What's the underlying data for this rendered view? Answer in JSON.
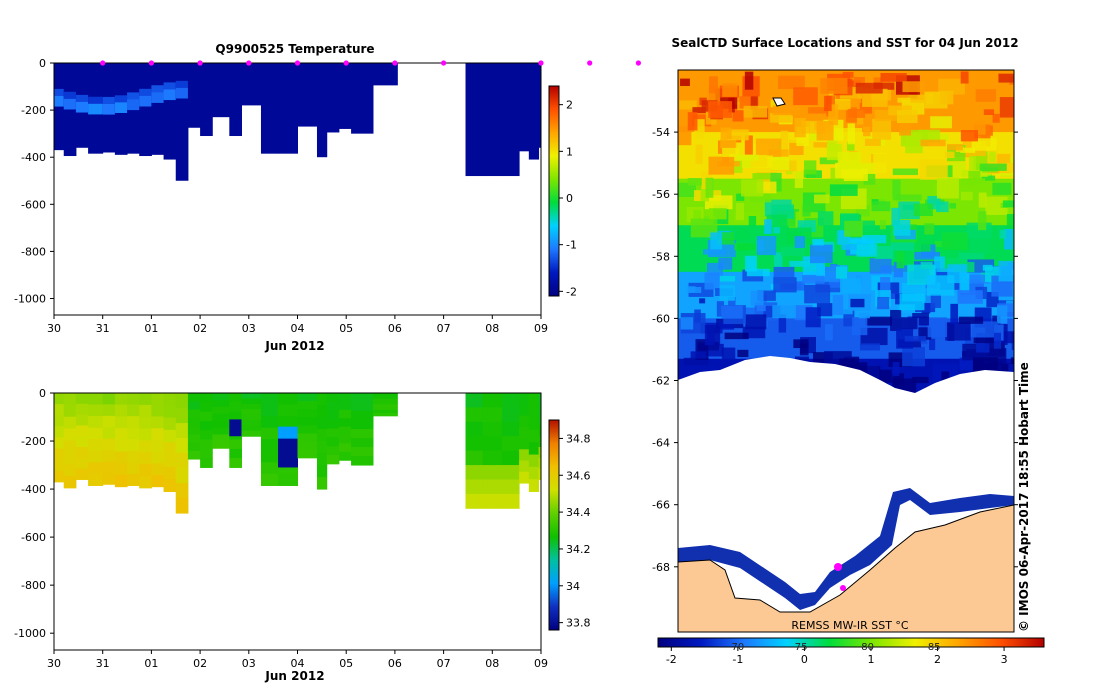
{
  "colors": {
    "depth_scale": [
      "#000080",
      "#0019c0",
      "#1e78ff",
      "#00d2ff",
      "#00dc3c",
      "#7ee600",
      "#f0f000",
      "#ffa500",
      "#ff5000",
      "#b40000"
    ],
    "salinity_scale": [
      "#000080",
      "#1030c0",
      "#00a0ff",
      "#00c0a0",
      "#10c000",
      "#60d000",
      "#d0e000",
      "#f0c000",
      "#f08000",
      "#b41000"
    ],
    "land": "#fcc894",
    "ice": "#ffffff",
    "marker": "#ff00ff"
  },
  "chart_data": [
    {
      "type": "heatmap",
      "title": "Q9900525  Temperature",
      "xlabel": "Jun 2012",
      "x_ticks": [
        "30",
        "31",
        "01",
        "02",
        "03",
        "04",
        "05",
        "06",
        "07",
        "08",
        "09"
      ],
      "x_range": [
        0,
        10
      ],
      "y_ticks": [
        "0",
        "-200",
        "-400",
        "-600",
        "-800",
        "-1000"
      ],
      "y_tick_values": [
        0,
        -200,
        -400,
        -600,
        -800,
        -1000
      ],
      "ylim": [
        -1070,
        0
      ],
      "colorbar": {
        "ticks": [
          "-2",
          "-1",
          "0",
          "1",
          "2"
        ],
        "tick_values": [
          -2,
          -1,
          0,
          1,
          2
        ],
        "range": [
          -2.1,
          2.4
        ]
      },
      "profiles": [
        {
          "t0": 0.0,
          "t1": 0.2,
          "bottom": -370
        },
        {
          "t0": 0.2,
          "t1": 0.45,
          "bottom": -395
        },
        {
          "t0": 0.45,
          "t1": 0.7,
          "bottom": -360
        },
        {
          "t0": 0.7,
          "t1": 1.0,
          "bottom": -385
        },
        {
          "t0": 1.0,
          "t1": 1.25,
          "bottom": -380
        },
        {
          "t0": 1.25,
          "t1": 1.5,
          "bottom": -390
        },
        {
          "t0": 1.5,
          "t1": 1.75,
          "bottom": -385
        },
        {
          "t0": 1.75,
          "t1": 2.0,
          "bottom": -395
        },
        {
          "t0": 2.0,
          "t1": 2.25,
          "bottom": -390
        },
        {
          "t0": 2.25,
          "t1": 2.5,
          "bottom": -410
        },
        {
          "t0": 2.5,
          "t1": 2.75,
          "bottom": -500
        },
        {
          "t0": 2.75,
          "t1": 3.0,
          "bottom": -275
        },
        {
          "t0": 3.0,
          "t1": 3.25,
          "bottom": -310
        },
        {
          "t0": 3.25,
          "t1": 3.6,
          "bottom": -230
        },
        {
          "t0": 3.6,
          "t1": 3.85,
          "bottom": -310
        },
        {
          "t0": 3.85,
          "t1": 4.25,
          "bottom": -180
        },
        {
          "t0": 4.25,
          "t1": 4.6,
          "bottom": -385
        },
        {
          "t0": 4.6,
          "t1": 5.0,
          "bottom": -385
        },
        {
          "t0": 5.0,
          "t1": 5.4,
          "bottom": -270
        },
        {
          "t0": 5.4,
          "t1": 5.6,
          "bottom": -400
        },
        {
          "t0": 5.6,
          "t1": 5.85,
          "bottom": -295
        },
        {
          "t0": 5.85,
          "t1": 6.1,
          "bottom": -280
        },
        {
          "t0": 6.1,
          "t1": 6.55,
          "bottom": -300
        },
        {
          "t0": 6.55,
          "t1": 7.05,
          "bottom": -95
        },
        {
          "t0": 8.45,
          "t1": 8.8,
          "bottom": -480
        },
        {
          "t0": 8.8,
          "t1": 9.2,
          "bottom": -480
        },
        {
          "t0": 9.2,
          "t1": 9.55,
          "bottom": -480
        },
        {
          "t0": 9.55,
          "t1": 9.75,
          "bottom": -375
        },
        {
          "t0": 9.75,
          "t1": 9.95,
          "bottom": -410
        },
        {
          "t0": 9.95,
          "t1": 10.0,
          "bottom": -360
        }
      ],
      "markers": [
        1.0,
        2.0,
        3.0,
        4.0,
        5.0,
        6.0,
        7.0,
        8.0,
        10.0,
        11.0,
        12.0
      ]
    },
    {
      "type": "heatmap",
      "title": "",
      "xlabel": "Jun 2012",
      "x_ticks": [
        "30",
        "31",
        "01",
        "02",
        "03",
        "04",
        "05",
        "06",
        "07",
        "08",
        "09"
      ],
      "x_range": [
        0,
        10
      ],
      "y_ticks": [
        "0",
        "-200",
        "-400",
        "-600",
        "-800",
        "-1000"
      ],
      "y_tick_values": [
        0,
        -200,
        -400,
        -600,
        -800,
        -1000
      ],
      "ylim": [
        -1070,
        0
      ],
      "colorbar": {
        "ticks": [
          "33.8",
          "34",
          "34.2",
          "34.4",
          "34.6",
          "34.8"
        ],
        "tick_values": [
          33.8,
          34.0,
          34.2,
          34.4,
          34.6,
          34.8
        ],
        "range": [
          33.76,
          34.9
        ]
      },
      "profiles": [
        {
          "t0": 0.0,
          "t1": 0.2,
          "bottom": -370
        },
        {
          "t0": 0.2,
          "t1": 0.45,
          "bottom": -395
        },
        {
          "t0": 0.45,
          "t1": 0.7,
          "bottom": -360
        },
        {
          "t0": 0.7,
          "t1": 1.0,
          "bottom": -385
        },
        {
          "t0": 1.0,
          "t1": 1.25,
          "bottom": -380
        },
        {
          "t0": 1.25,
          "t1": 1.5,
          "bottom": -390
        },
        {
          "t0": 1.5,
          "t1": 1.75,
          "bottom": -385
        },
        {
          "t0": 1.75,
          "t1": 2.0,
          "bottom": -395
        },
        {
          "t0": 2.0,
          "t1": 2.25,
          "bottom": -390
        },
        {
          "t0": 2.25,
          "t1": 2.5,
          "bottom": -410
        },
        {
          "t0": 2.5,
          "t1": 2.75,
          "bottom": -500
        },
        {
          "t0": 2.75,
          "t1": 3.0,
          "bottom": -275
        },
        {
          "t0": 3.0,
          "t1": 3.25,
          "bottom": -310
        },
        {
          "t0": 3.25,
          "t1": 3.6,
          "bottom": -230
        },
        {
          "t0": 3.6,
          "t1": 3.85,
          "bottom": -310
        },
        {
          "t0": 3.85,
          "t1": 4.25,
          "bottom": -180
        },
        {
          "t0": 4.25,
          "t1": 4.6,
          "bottom": -385
        },
        {
          "t0": 4.6,
          "t1": 5.0,
          "bottom": -385
        },
        {
          "t0": 5.0,
          "t1": 5.4,
          "bottom": -270
        },
        {
          "t0": 5.4,
          "t1": 5.6,
          "bottom": -400
        },
        {
          "t0": 5.6,
          "t1": 5.85,
          "bottom": -295
        },
        {
          "t0": 5.85,
          "t1": 6.1,
          "bottom": -280
        },
        {
          "t0": 6.1,
          "t1": 6.55,
          "bottom": -300
        },
        {
          "t0": 6.55,
          "t1": 7.05,
          "bottom": -95
        },
        {
          "t0": 8.45,
          "t1": 8.8,
          "bottom": -480
        },
        {
          "t0": 8.8,
          "t1": 9.2,
          "bottom": -480
        },
        {
          "t0": 9.2,
          "t1": 9.55,
          "bottom": -480
        },
        {
          "t0": 9.55,
          "t1": 9.75,
          "bottom": -375
        },
        {
          "t0": 9.75,
          "t1": 9.95,
          "bottom": -410
        },
        {
          "t0": 9.95,
          "t1": 10.0,
          "bottom": -360
        }
      ]
    },
    {
      "type": "heatmap",
      "title": "SealCTD Surface Locations and SST for 04 Jun 2012",
      "y_ticks": [
        "-54",
        "-56",
        "-58",
        "-60",
        "-62",
        "-64",
        "-66",
        "-68"
      ],
      "y_tick_values": [
        -54,
        -56,
        -58,
        -60,
        -62,
        -64,
        -66,
        -68
      ],
      "ylim": [
        -70.1,
        -52.0
      ],
      "colorbar": {
        "ticks": [
          "-2",
          "-1",
          "0",
          "1",
          "2",
          "3"
        ],
        "tick_values": [
          -2,
          -1,
          0,
          1,
          2,
          3
        ],
        "range": [
          -2.2,
          3.6
        ],
        "overlay_labels": [
          "70",
          "75",
          "80",
          "85"
        ],
        "overlay_values": [
          -1.0,
          -0.05,
          0.95,
          1.95
        ]
      },
      "legend": "REMSS MW-IR SST °C",
      "credit": "© IMOS 06-Apr-2017 18:55 Hobart Time",
      "bands": [
        {
          "lat_top": -52.0,
          "lat_bot": -54.0,
          "value": 2.4
        },
        {
          "lat_top": -54.0,
          "lat_bot": -55.5,
          "value": 1.8
        },
        {
          "lat_top": -55.5,
          "lat_bot": -57.0,
          "value": 1.0
        },
        {
          "lat_top": -57.0,
          "lat_bot": -58.5,
          "value": 0.3
        },
        {
          "lat_top": -58.5,
          "lat_bot": -60.0,
          "value": -0.6
        },
        {
          "lat_top": -60.0,
          "lat_bot": -61.3,
          "value": -1.1
        },
        {
          "lat_top": -61.3,
          "lat_bot": -62.7,
          "value": -1.7
        }
      ]
    }
  ]
}
